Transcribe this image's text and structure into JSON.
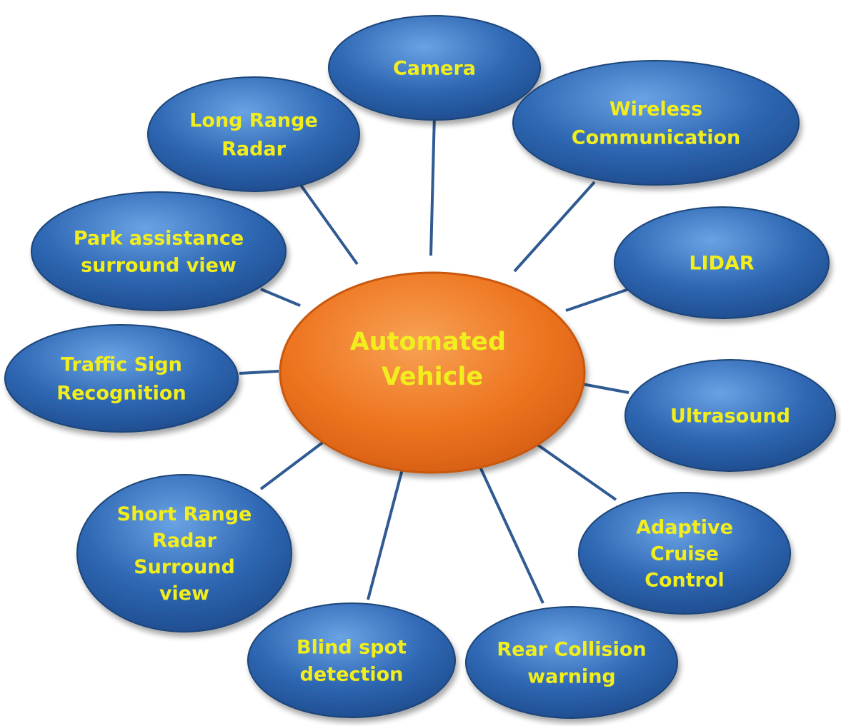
{
  "diagram": {
    "center": {
      "lines": [
        "Automated",
        "Vehicle"
      ]
    },
    "nodes": [
      {
        "id": "camera",
        "lines": [
          "Camera"
        ]
      },
      {
        "id": "wireless-communication",
        "lines": [
          "Wireless",
          "Communication"
        ]
      },
      {
        "id": "lidar",
        "lines": [
          "LIDAR"
        ]
      },
      {
        "id": "ultrasound",
        "lines": [
          "Ultrasound"
        ]
      },
      {
        "id": "adaptive-cruise-control",
        "lines": [
          "Adaptive",
          "Cruise",
          "Control"
        ]
      },
      {
        "id": "rear-collision-warning",
        "lines": [
          "Rear Collision",
          "warning"
        ]
      },
      {
        "id": "blind-spot-detection",
        "lines": [
          "Blind spot",
          "detection"
        ]
      },
      {
        "id": "short-range-radar",
        "lines": [
          "Short Range",
          "Radar",
          "Surround",
          "view"
        ]
      },
      {
        "id": "traffic-sign-recognition",
        "lines": [
          "Traffic Sign",
          "Recognition"
        ]
      },
      {
        "id": "park-assistance",
        "lines": [
          "Park assistance",
          "surround view"
        ]
      },
      {
        "id": "long-range-radar",
        "lines": [
          "Long Range",
          "Radar"
        ]
      }
    ],
    "colors": {
      "center_fill": "#ee7420",
      "node_fill": "#2f68b4",
      "label_text": "#f2ee1e",
      "connector": "#2f5a92"
    }
  }
}
